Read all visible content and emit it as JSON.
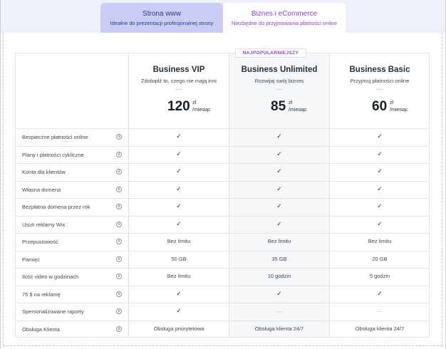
{
  "tabs": [
    {
      "title": "Strona www",
      "subtitle": "Idealne do prezentacji profesjonalnej strony"
    },
    {
      "title": "Biznes i eCommerce",
      "subtitle": "Niezbędne do przyjmowania płatności online"
    }
  ],
  "badge": "NAJPOPULARNIEJSZY",
  "plans": [
    {
      "name": "Business VIP",
      "desc": "Zdobądź to, czego nie mają inni",
      "price": "120",
      "currency": "zł",
      "period": "/miesiąc"
    },
    {
      "name": "Business Unlimited",
      "desc": "Rozwijaj swój biznes",
      "price": "85",
      "currency": "zł",
      "period": "/miesiąc"
    },
    {
      "name": "Business Basic",
      "desc": "Przyjmuj płatności online",
      "price": "60",
      "currency": "zł",
      "period": "/miesiąc"
    }
  ],
  "info_icon_glyph": "i",
  "features": [
    {
      "label": "Bezpieczne płatności online",
      "values": [
        "✓",
        "✓",
        "✓"
      ]
    },
    {
      "label": "Plany i płatności cykliczne",
      "values": [
        "✓",
        "✓",
        "✓"
      ]
    },
    {
      "label": "Konta dla klientów",
      "values": [
        "✓",
        "✓",
        "✓"
      ]
    },
    {
      "label": "Własna domena",
      "values": [
        "✓",
        "✓",
        "✓"
      ]
    },
    {
      "label": "Bezpłatna domena przez rok",
      "values": [
        "✓",
        "✓",
        "✓"
      ]
    },
    {
      "label": "Usuń reklamy Wix",
      "values": [
        "✓",
        "✓",
        "✓"
      ]
    },
    {
      "label": "Przepustowość",
      "values": [
        "Bez limitu",
        "Bez limitu",
        "Bez limitu"
      ]
    },
    {
      "label": "Pamięć",
      "values": [
        "50 GB",
        "35 GB",
        "20 GB"
      ]
    },
    {
      "label": "Ilość video w godzinach",
      "values": [
        "Bez limitu",
        "10 godzin",
        "5 godzin"
      ]
    },
    {
      "label": "75 $ na reklamę",
      "values": [
        "✓",
        "✓",
        "✓"
      ]
    },
    {
      "label": "Spersonalizowane raporty",
      "values": [
        "✓",
        "—",
        "—"
      ]
    },
    {
      "label": "Obsługa Klienta",
      "values": [
        "Obsługa priorytetowa",
        "Obsługa klienta 24/7",
        "Obsługa klienta 24/7"
      ]
    }
  ],
  "colors": {
    "accent_purple": "#8d3fc2",
    "tab_inactive_bg": "#c9cdf3",
    "band_bg": "#eef0fb",
    "highlight_col_bg": "#f6f7f9"
  }
}
